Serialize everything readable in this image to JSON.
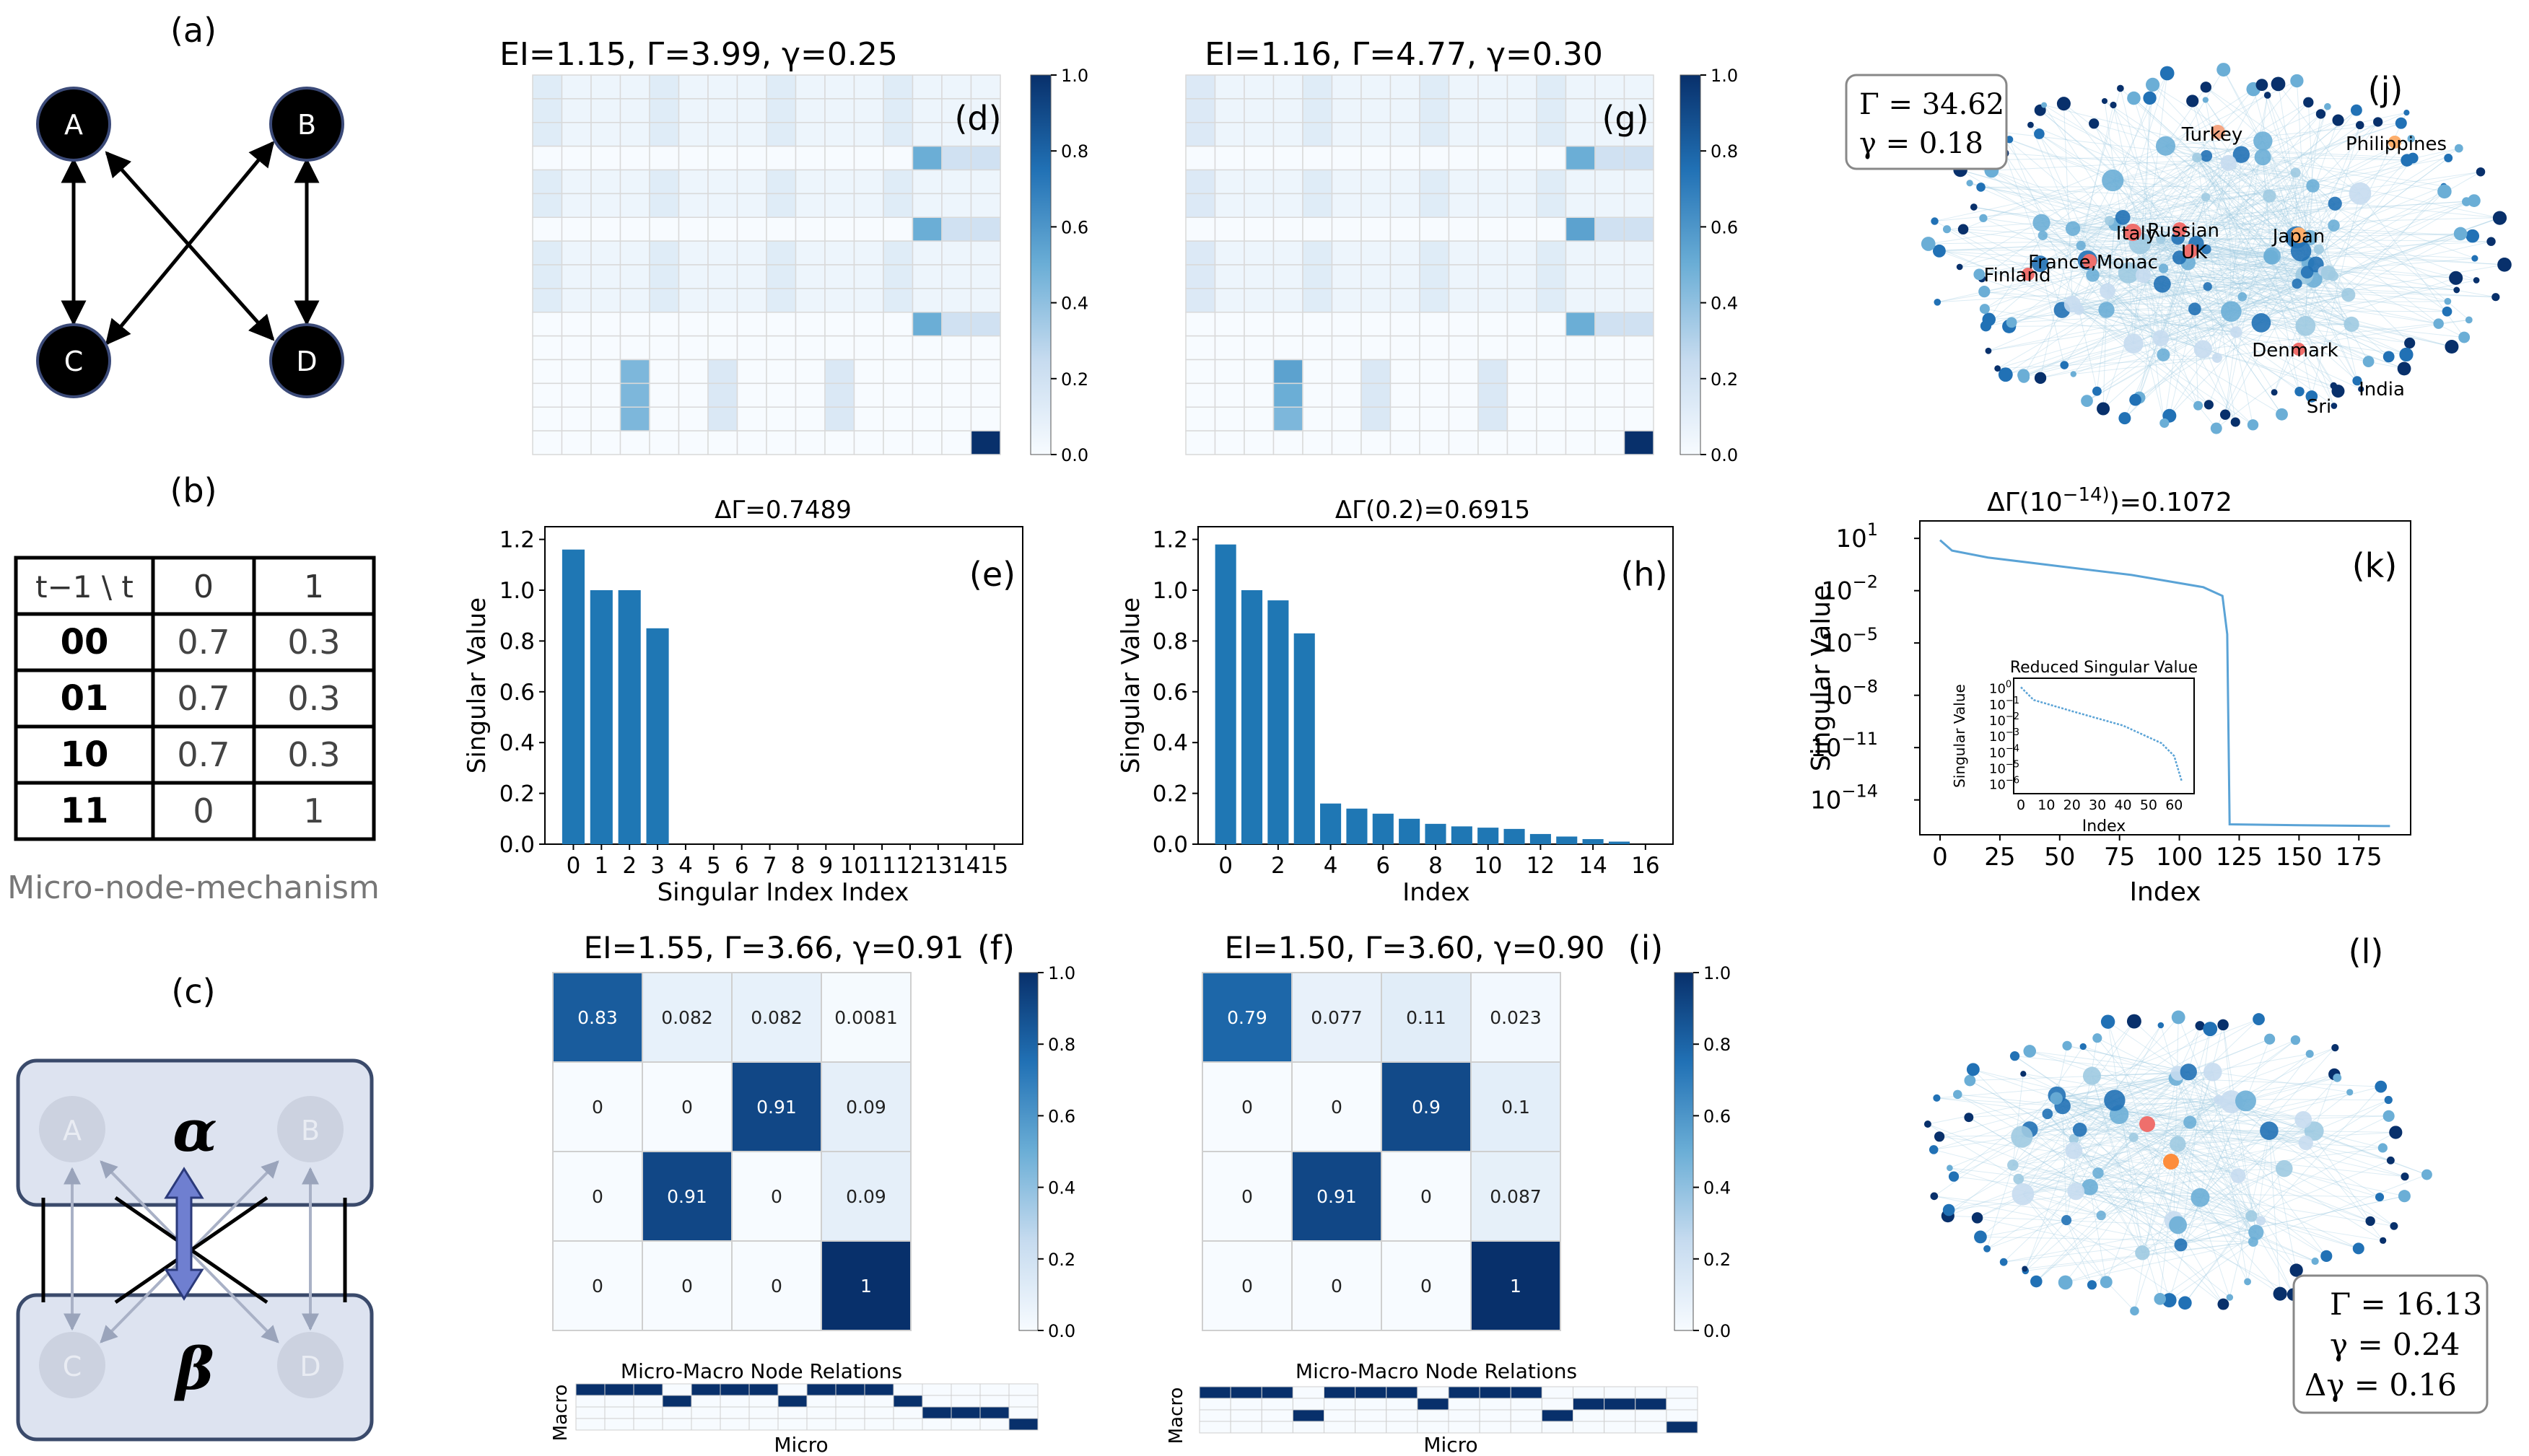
{
  "panel_labels": [
    "(a)",
    "(b)",
    "(c)",
    "(d)",
    "(e)",
    "(f)",
    "(g)",
    "(h)",
    "(i)",
    "(j)",
    "(k)",
    "(l)"
  ],
  "panel_a": {
    "nodes": [
      "A",
      "B",
      "C",
      "D"
    ]
  },
  "panel_b": {
    "header": [
      "t−1 \\ t",
      "0",
      "1"
    ],
    "rows": [
      [
        "00",
        "0.7",
        "0.3"
      ],
      [
        "01",
        "0.7",
        "0.3"
      ],
      [
        "10",
        "0.7",
        "0.3"
      ],
      [
        "11",
        "0",
        "1"
      ]
    ],
    "caption": "Micro-node-mechanism"
  },
  "panel_c": {
    "macro_top": "α",
    "macro_bottom": "β",
    "nodes": [
      "A",
      "B",
      "C",
      "D"
    ]
  },
  "panel_d": {
    "title": "EI=1.15, Γ=3.99, γ=0.25",
    "colorbar_ticks": [
      "0.0",
      "0.2",
      "0.4",
      "0.6",
      "0.8",
      "1.0"
    ],
    "heatmap_rows": [
      [
        0.12,
        0.05,
        0.05,
        0.05,
        0.12,
        0.05,
        0.05,
        0.05,
        0.12,
        0.05,
        0.05,
        0.05,
        0.12,
        0.05,
        0.05,
        0.05
      ],
      [
        0.12,
        0.05,
        0.05,
        0.05,
        0.12,
        0.05,
        0.05,
        0.05,
        0.12,
        0.05,
        0.05,
        0.05,
        0.12,
        0.05,
        0.05,
        0.05
      ],
      [
        0.12,
        0.05,
        0.05,
        0.05,
        0.12,
        0.05,
        0.05,
        0.05,
        0.12,
        0.05,
        0.05,
        0.05,
        0.12,
        0.05,
        0.05,
        0.05
      ],
      [
        0,
        0,
        0,
        0,
        0,
        0,
        0,
        0,
        0,
        0,
        0,
        0,
        0,
        0.5,
        0.2,
        0.2
      ],
      [
        0.12,
        0.05,
        0.05,
        0.05,
        0.12,
        0.05,
        0.05,
        0.05,
        0.12,
        0.05,
        0.05,
        0.05,
        0.12,
        0.05,
        0.05,
        0.05
      ],
      [
        0.12,
        0.05,
        0.05,
        0.05,
        0.12,
        0.05,
        0.05,
        0.05,
        0.12,
        0.05,
        0.05,
        0.05,
        0.12,
        0.05,
        0.05,
        0.05
      ],
      [
        0,
        0,
        0,
        0,
        0,
        0,
        0,
        0,
        0,
        0,
        0,
        0,
        0,
        0.5,
        0.2,
        0.2
      ],
      [
        0.12,
        0.05,
        0.05,
        0.05,
        0.12,
        0.05,
        0.05,
        0.05,
        0.12,
        0.05,
        0.05,
        0.05,
        0.12,
        0.05,
        0.05,
        0.05
      ],
      [
        0.12,
        0.05,
        0.05,
        0.05,
        0.12,
        0.05,
        0.05,
        0.05,
        0.12,
        0.05,
        0.05,
        0.05,
        0.12,
        0.05,
        0.05,
        0.05
      ],
      [
        0.12,
        0.05,
        0.05,
        0.05,
        0.12,
        0.05,
        0.05,
        0.05,
        0.12,
        0.05,
        0.05,
        0.05,
        0.12,
        0.05,
        0.05,
        0.05
      ],
      [
        0,
        0,
        0,
        0,
        0,
        0,
        0,
        0,
        0,
        0,
        0,
        0,
        0,
        0.5,
        0.2,
        0.2
      ],
      [
        0,
        0,
        0,
        0,
        0,
        0,
        0,
        0,
        0,
        0,
        0,
        0,
        0,
        0,
        0,
        0
      ],
      [
        0,
        0,
        0,
        0.45,
        0,
        0,
        0.15,
        0,
        0,
        0,
        0.15,
        0,
        0,
        0,
        0,
        0
      ],
      [
        0,
        0,
        0,
        0.45,
        0,
        0,
        0.15,
        0,
        0,
        0,
        0.15,
        0,
        0,
        0,
        0,
        0
      ],
      [
        0,
        0,
        0,
        0.45,
        0,
        0,
        0.15,
        0,
        0,
        0,
        0.15,
        0,
        0,
        0,
        0,
        0
      ],
      [
        0,
        0,
        0,
        0,
        0,
        0,
        0,
        0,
        0,
        0,
        0,
        0,
        0,
        0,
        0,
        1.0
      ]
    ]
  },
  "panel_g": {
    "title": "EI=1.16, Γ=4.77, γ=0.30",
    "colorbar_ticks": [
      "0.0",
      "0.2",
      "0.4",
      "0.6",
      "0.8",
      "1.0"
    ],
    "heatmap_rows": [
      [
        0.14,
        0.05,
        0.05,
        0.05,
        0.12,
        0.05,
        0.05,
        0.05,
        0.12,
        0.05,
        0.05,
        0.05,
        0.12,
        0.05,
        0.05,
        0.05
      ],
      [
        0.14,
        0.05,
        0.05,
        0.05,
        0.12,
        0.05,
        0.05,
        0.05,
        0.12,
        0.05,
        0.05,
        0.05,
        0.12,
        0.05,
        0.05,
        0.05
      ],
      [
        0.14,
        0.05,
        0.05,
        0.05,
        0.12,
        0.05,
        0.05,
        0.05,
        0.12,
        0.05,
        0.05,
        0.05,
        0.12,
        0.05,
        0.05,
        0.05
      ],
      [
        0,
        0,
        0,
        0,
        0,
        0,
        0,
        0,
        0,
        0,
        0,
        0,
        0,
        0.5,
        0.2,
        0.2
      ],
      [
        0.14,
        0.05,
        0.05,
        0.05,
        0.12,
        0.05,
        0.05,
        0.05,
        0.12,
        0.05,
        0.05,
        0.05,
        0.12,
        0.05,
        0.05,
        0.05
      ],
      [
        0.14,
        0.05,
        0.05,
        0.05,
        0.12,
        0.05,
        0.05,
        0.05,
        0.12,
        0.05,
        0.05,
        0.05,
        0.12,
        0.05,
        0.05,
        0.05
      ],
      [
        0,
        0,
        0,
        0,
        0,
        0,
        0,
        0,
        0,
        0,
        0,
        0,
        0,
        0.55,
        0.2,
        0.2
      ],
      [
        0.14,
        0.05,
        0.05,
        0.05,
        0.12,
        0.05,
        0.05,
        0.05,
        0.12,
        0.05,
        0.05,
        0.05,
        0.12,
        0.05,
        0.05,
        0.05
      ],
      [
        0.14,
        0.05,
        0.05,
        0.05,
        0.12,
        0.05,
        0.05,
        0.05,
        0.12,
        0.05,
        0.05,
        0.05,
        0.12,
        0.05,
        0.05,
        0.05
      ],
      [
        0.14,
        0.05,
        0.05,
        0.05,
        0.12,
        0.05,
        0.05,
        0.05,
        0.12,
        0.05,
        0.05,
        0.05,
        0.12,
        0.05,
        0.05,
        0.05
      ],
      [
        0,
        0,
        0,
        0,
        0,
        0,
        0,
        0,
        0,
        0,
        0,
        0,
        0,
        0.5,
        0.2,
        0.2
      ],
      [
        0,
        0,
        0,
        0,
        0,
        0,
        0,
        0,
        0,
        0,
        0,
        0,
        0,
        0,
        0,
        0
      ],
      [
        0,
        0,
        0,
        0.55,
        0,
        0,
        0.15,
        0,
        0,
        0,
        0.15,
        0,
        0,
        0,
        0,
        0
      ],
      [
        0,
        0,
        0,
        0.5,
        0,
        0,
        0.15,
        0,
        0,
        0,
        0.15,
        0,
        0,
        0,
        0,
        0
      ],
      [
        0,
        0,
        0,
        0.45,
        0,
        0,
        0.15,
        0,
        0,
        0,
        0.15,
        0,
        0,
        0,
        0,
        0
      ],
      [
        0,
        0,
        0,
        0,
        0,
        0,
        0,
        0,
        0,
        0,
        0,
        0,
        0,
        0,
        0,
        1.0
      ]
    ]
  },
  "panel_f": {
    "title": "EI=1.55, Γ=3.66, γ=0.91",
    "colorbar_ticks": [
      "0.0",
      "0.2",
      "0.4",
      "0.6",
      "0.8",
      "1.0"
    ],
    "matrix": [
      [
        0.83,
        0.082,
        0.082,
        0.0081
      ],
      [
        0,
        0,
        0.91,
        0.09
      ],
      [
        0,
        0.91,
        0,
        0.09
      ],
      [
        0,
        0,
        0,
        1
      ]
    ],
    "cell_labels": [
      [
        "0.83",
        "0.082",
        "0.082",
        "0.0081"
      ],
      [
        "0",
        "0",
        "0.91",
        "0.09"
      ],
      [
        "0",
        "0.91",
        "0",
        "0.09"
      ],
      [
        "0",
        "0",
        "0",
        "1"
      ]
    ],
    "relation_title": "Micro-Macro Node Relations",
    "relation_xlabel": "Micro",
    "relation_ylabel": "Macro",
    "relation_assign": [
      0,
      0,
      0,
      1,
      0,
      0,
      0,
      1,
      0,
      0,
      0,
      1,
      2,
      2,
      2,
      3
    ]
  },
  "panel_i": {
    "title": "EI=1.50, Γ=3.60, γ=0.90",
    "colorbar_ticks": [
      "0.0",
      "0.2",
      "0.4",
      "0.6",
      "0.8",
      "1.0"
    ],
    "matrix": [
      [
        0.79,
        0.077,
        0.11,
        0.023
      ],
      [
        0,
        0,
        0.9,
        0.1
      ],
      [
        0,
        0.91,
        0,
        0.087
      ],
      [
        0,
        0,
        0,
        1
      ]
    ],
    "cell_labels": [
      [
        "0.79",
        "0.077",
        "0.11",
        "0.023"
      ],
      [
        "0",
        "0",
        "0.9",
        "0.1"
      ],
      [
        "0",
        "0.91",
        "0",
        "0.087"
      ],
      [
        "0",
        "0",
        "0",
        "1"
      ]
    ],
    "relation_title": "Micro-Macro Node Relations",
    "relation_xlabel": "Micro",
    "relation_ylabel": "Macro",
    "relation_assign": [
      0,
      0,
      0,
      2,
      0,
      0,
      0,
      1,
      0,
      0,
      0,
      2,
      1,
      1,
      1,
      3
    ]
  },
  "chart_data": [
    {
      "type": "bar",
      "panel": "(e)",
      "title": "ΔΓ=0.7489",
      "xlabel": "Singular Index Index",
      "ylabel": "Singular Value",
      "categories": [
        "0",
        "1",
        "2",
        "3",
        "4",
        "5",
        "6",
        "7",
        "8",
        "9",
        "10",
        "11",
        "12",
        "13",
        "14",
        "15"
      ],
      "values": [
        1.16,
        1.0,
        1.0,
        0.85,
        0,
        0,
        0,
        0,
        0,
        0,
        0,
        0,
        0,
        0,
        0,
        0
      ],
      "ylim": [
        0,
        1.25
      ],
      "yticks": [
        "0.0",
        "0.2",
        "0.4",
        "0.6",
        "0.8",
        "1.0",
        "1.2"
      ],
      "xticks": [
        "0",
        "1",
        "2",
        "3",
        "4",
        "5",
        "6",
        "7",
        "8",
        "9",
        "10",
        "11",
        "12",
        "13",
        "14",
        "15"
      ],
      "color": "#1f77b4"
    },
    {
      "type": "bar",
      "panel": "(h)",
      "title": "ΔΓ(0.2)=0.6915",
      "xlabel": "Index",
      "ylabel": "Singular Value",
      "x": [
        0,
        1,
        2,
        3,
        4,
        5,
        6,
        7,
        8,
        9,
        10,
        11,
        12,
        13,
        14,
        15
      ],
      "values": [
        1.18,
        1.0,
        0.96,
        0.83,
        0.16,
        0.14,
        0.12,
        0.1,
        0.08,
        0.07,
        0.065,
        0.06,
        0.04,
        0.03,
        0.02,
        0.01
      ],
      "ylim": [
        0,
        1.25
      ],
      "yticks": [
        "0.0",
        "0.2",
        "0.4",
        "0.6",
        "0.8",
        "1.0",
        "1.2"
      ],
      "xticks": [
        "0",
        "2",
        "4",
        "6",
        "8",
        "10",
        "12",
        "14",
        "16"
      ],
      "color": "#1f77b4"
    },
    {
      "type": "line",
      "panel": "(k)",
      "title_base": "ΔΓ(10",
      "title_exp": "−14)",
      "title_tail": ")=0.1072",
      "xlabel": "Index",
      "ylabel": "Singular Value",
      "x_range": [
        0,
        190
      ],
      "y_log_range": [
        -16,
        2
      ],
      "xticks": [
        "0",
        "25",
        "50",
        "75",
        "100",
        "125",
        "150",
        "175"
      ],
      "yticks": [
        {
          "base": "10",
          "exp": "1"
        },
        {
          "base": "10",
          "exp": "−2"
        },
        {
          "base": "10",
          "exp": "−5"
        },
        {
          "base": "10",
          "exp": "−8"
        },
        {
          "base": "10",
          "exp": "−11"
        },
        {
          "base": "10",
          "exp": "−14"
        }
      ],
      "curve_log10": [
        [
          0,
          0.9
        ],
        [
          5,
          0.3
        ],
        [
          20,
          -0.1
        ],
        [
          50,
          -0.6
        ],
        [
          80,
          -1.1
        ],
        [
          110,
          -1.8
        ],
        [
          118,
          -2.3
        ],
        [
          120,
          -4.5
        ],
        [
          121,
          -15.4
        ],
        [
          150,
          -15.45
        ],
        [
          188,
          -15.5
        ]
      ],
      "color": "#5aa3d6",
      "inset": {
        "title": "Reduced Singular Value",
        "xlabel": "Index",
        "ylabel": "Singular Value",
        "xticks": [
          "0",
          "10",
          "20",
          "30",
          "40",
          "50",
          "60"
        ],
        "yticks": [
          {
            "base": "10",
            "exp": "0"
          },
          {
            "base": "10",
            "exp": "−1"
          },
          {
            "base": "10",
            "exp": "−2"
          },
          {
            "base": "10",
            "exp": "−3"
          },
          {
            "base": "10",
            "exp": "−4"
          },
          {
            "base": "10",
            "exp": "−5"
          },
          {
            "base": "10",
            "exp": "−6"
          }
        ],
        "curve_log10": [
          [
            0,
            0.1
          ],
          [
            5,
            -0.7
          ],
          [
            20,
            -1.4
          ],
          [
            40,
            -2.3
          ],
          [
            55,
            -3.4
          ],
          [
            60,
            -4.2
          ],
          [
            63,
            -5.8
          ]
        ]
      }
    }
  ],
  "panel_j": {
    "metrics": [
      "Γ = 34.62",
      "γ = 0.18"
    ],
    "labels": [
      "Turkey",
      "Philippines",
      "Italy",
      "Russian",
      "UK",
      "Japan",
      "France,Monac",
      "Finland",
      "Denmark",
      "India",
      "Sri"
    ]
  },
  "panel_l": {
    "metrics": [
      "Γ = 16.13",
      "γ = 0.24",
      "Δγ = 0.16"
    ]
  },
  "colors": {
    "dark_blue": "#08306b",
    "mid_blue": "#1f77b4",
    "light_blue": "#c6dbef",
    "node_fill": "#000000",
    "macro_box": "#dde3f0",
    "macro_border": "#3a4a6b",
    "arrow_purple": "#6f7fd0"
  }
}
